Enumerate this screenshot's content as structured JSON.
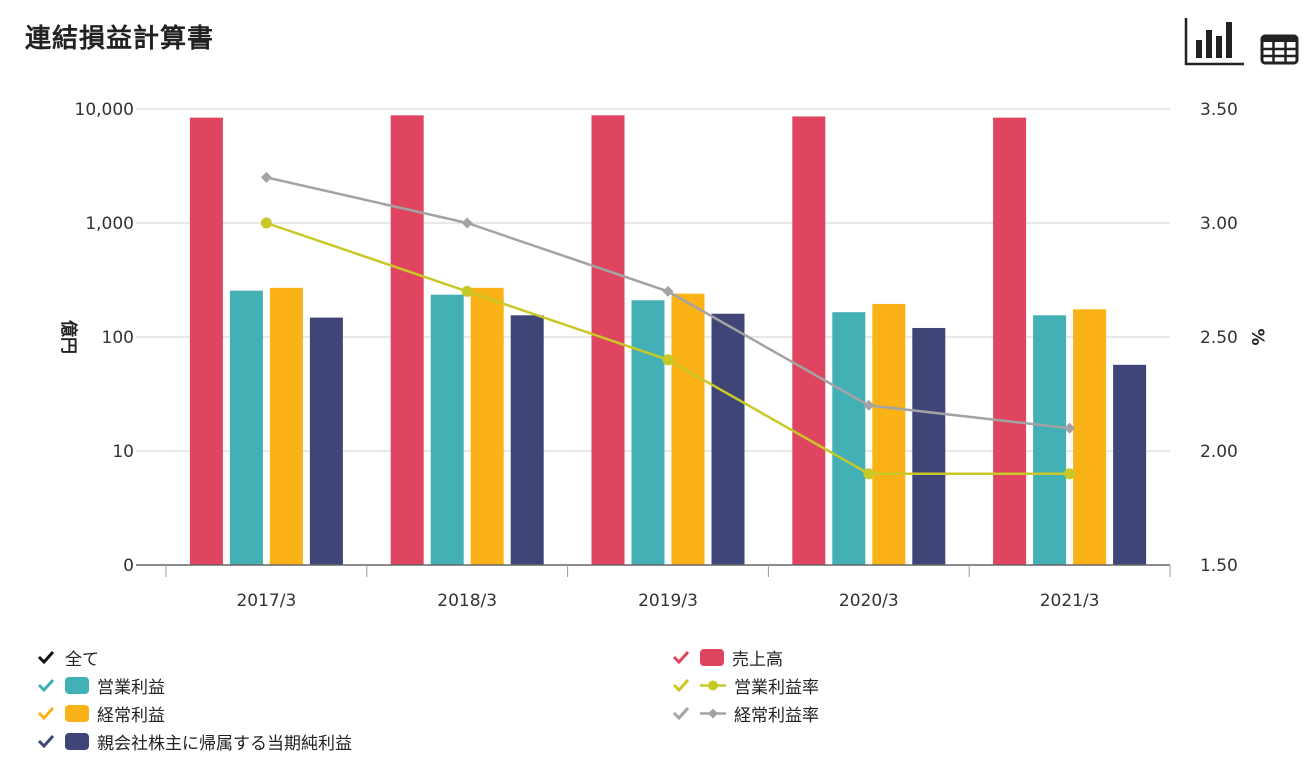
{
  "title": "連結損益計算書",
  "toolbar": {
    "chart_icon": "bar-chart-icon",
    "table_icon": "table-icon"
  },
  "colors": {
    "sales": "#e0455f",
    "operating": "#43b0b6",
    "ordinary": "#fbb217",
    "net": "#3f4677",
    "op_rate": "#c8c926",
    "ord_rate": "#a3a3a5",
    "all_check": "#111111"
  },
  "chart_data": {
    "type": "bar",
    "categories": [
      "2017/3",
      "2018/3",
      "2019/3",
      "2020/3",
      "2021/3"
    ],
    "y_left": {
      "label": "億円",
      "scale": "log",
      "ticks": [
        "0",
        "10",
        "100",
        "1,000",
        "10,000"
      ]
    },
    "y_right": {
      "label": "%",
      "ticks": [
        "1.50",
        "2.00",
        "2.50",
        "3.00",
        "3.50"
      ],
      "range": [
        1.5,
        3.5
      ]
    },
    "series": [
      {
        "name": "売上高",
        "type": "bar",
        "values": [
          8400,
          8800,
          8800,
          8600,
          8400
        ]
      },
      {
        "name": "営業利益",
        "type": "bar",
        "values": [
          255,
          235,
          210,
          165,
          155
        ]
      },
      {
        "name": "経常利益",
        "type": "bar",
        "values": [
          270,
          270,
          240,
          195,
          175
        ]
      },
      {
        "name": "親会社株主に帰属する当期純利益",
        "type": "bar",
        "values": [
          148,
          155,
          160,
          120,
          57
        ]
      },
      {
        "name": "営業利益率",
        "type": "line",
        "axis": "right",
        "values": [
          3.0,
          2.7,
          2.4,
          1.9,
          1.9
        ]
      },
      {
        "name": "経常利益率",
        "type": "line",
        "axis": "right",
        "values": [
          3.2,
          3.0,
          2.7,
          2.2,
          2.1
        ]
      }
    ],
    "grid": true,
    "legend_position": "bottom"
  },
  "legend": {
    "all_label": "全て"
  }
}
